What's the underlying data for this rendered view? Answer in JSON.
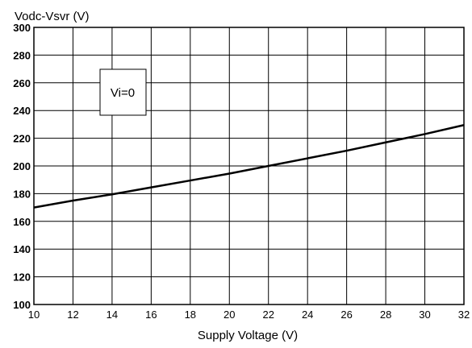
{
  "chart_data": {
    "type": "line",
    "title": "",
    "xlabel": "Supply Voltage  (V)",
    "ylabel": "Vodc-Vsvr (V)",
    "xlim": [
      10,
      32
    ],
    "ylim": [
      100,
      300
    ],
    "xticks": [
      10,
      12,
      14,
      16,
      18,
      20,
      22,
      24,
      26,
      28,
      30,
      32
    ],
    "yticks": [
      100,
      120,
      140,
      160,
      180,
      200,
      220,
      240,
      260,
      280,
      300
    ],
    "grid": true,
    "annotation": "Vi=0",
    "series": [
      {
        "x": [
          10,
          12,
          14,
          16,
          18,
          20,
          22,
          24,
          26,
          28,
          30,
          32
        ],
        "y": [
          170,
          175,
          179.5,
          184.5,
          189.5,
          194.5,
          200,
          205.5,
          211,
          217,
          223,
          229.5
        ]
      }
    ]
  }
}
